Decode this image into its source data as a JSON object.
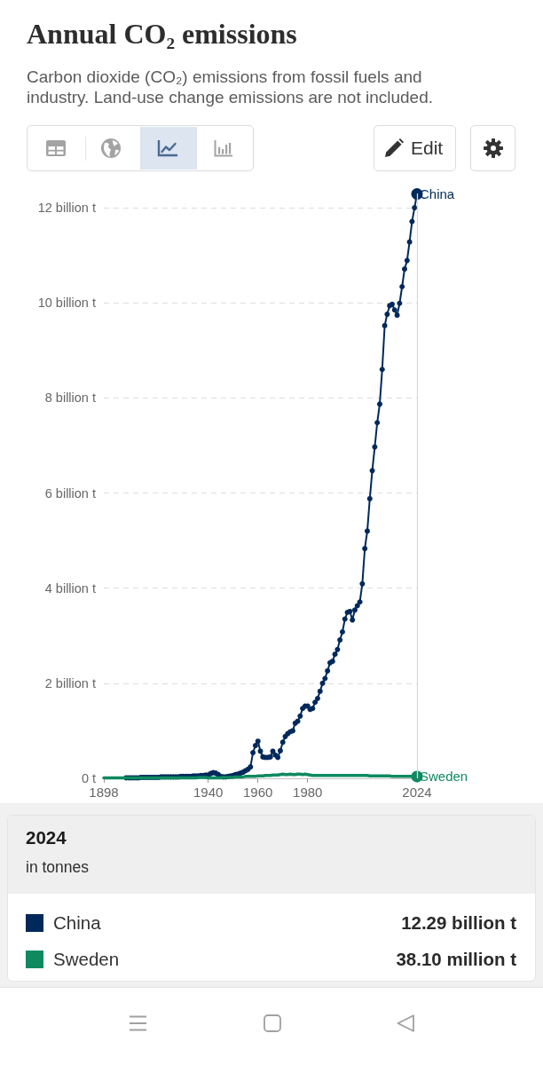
{
  "chart_data": {
    "type": "line",
    "title": "Annual CO₂ emissions",
    "subtitle": "Carbon dioxide (CO₂) emissions from fossil fuels and industry. Land-use change emissions are not included.",
    "annotations": [
      "Edit",
      "in tonnes",
      "12.29 billion t",
      "38.10 million t"
    ],
    "legend_title": "2024",
    "legend": "bottom",
    "grid": "y",
    "marker": "circle",
    "line_style": "solid",
    "xlim": [
      1898,
      2024
    ],
    "xticks": [
      1898,
      1940,
      1960,
      1980,
      2024
    ],
    "ylim": [
      0,
      12.3
    ],
    "yticks": [
      {
        "value": 0,
        "label": "0 t"
      },
      {
        "value": 2,
        "label": "2 billion t"
      },
      {
        "value": 4,
        "label": "4 billion t"
      },
      {
        "value": 6,
        "label": "6 billion t"
      },
      {
        "value": 8,
        "label": "8 billion t"
      },
      {
        "value": 10,
        "label": "10 billion t"
      },
      {
        "value": 12,
        "label": "12 billion t"
      }
    ],
    "ref_lines": [
      {
        "axis": "x",
        "value": 2024,
        "color": "#d9d9d9"
      }
    ],
    "x": [
      1898,
      1899,
      1900,
      1901,
      1902,
      1903,
      1904,
      1905,
      1906,
      1907,
      1908,
      1909,
      1910,
      1911,
      1912,
      1913,
      1914,
      1915,
      1916,
      1917,
      1918,
      1919,
      1920,
      1921,
      1922,
      1923,
      1924,
      1925,
      1926,
      1927,
      1928,
      1929,
      1930,
      1931,
      1932,
      1933,
      1934,
      1935,
      1936,
      1937,
      1938,
      1939,
      1940,
      1941,
      1942,
      1943,
      1944,
      1945,
      1946,
      1947,
      1948,
      1949,
      1950,
      1951,
      1952,
      1953,
      1954,
      1955,
      1956,
      1957,
      1958,
      1959,
      1960,
      1961,
      1962,
      1963,
      1964,
      1965,
      1966,
      1967,
      1968,
      1969,
      1970,
      1971,
      1972,
      1973,
      1974,
      1975,
      1976,
      1977,
      1978,
      1979,
      1980,
      1981,
      1982,
      1983,
      1984,
      1985,
      1986,
      1987,
      1988,
      1989,
      1990,
      1991,
      1992,
      1993,
      1994,
      1995,
      1996,
      1997,
      1998,
      1999,
      2000,
      2001,
      2002,
      2003,
      2004,
      2005,
      2006,
      2007,
      2008,
      2009,
      2010,
      2011,
      2012,
      2013,
      2014,
      2015,
      2016,
      2017,
      2018,
      2019,
      2020,
      2021,
      2022,
      2023,
      2024
    ],
    "series": [
      {
        "name": "China",
        "color": "#00295b",
        "values": [
          null,
          null,
          null,
          null,
          null,
          null,
          null,
          null,
          null,
          0.01,
          0.01,
          0.01,
          0.01,
          0.01,
          0.01,
          0.02,
          0.02,
          0.02,
          0.02,
          0.02,
          0.02,
          0.02,
          0.02,
          0.03,
          0.03,
          0.03,
          0.03,
          0.03,
          0.03,
          0.03,
          0.03,
          0.04,
          0.04,
          0.04,
          0.04,
          0.04,
          0.05,
          0.05,
          0.05,
          0.06,
          0.06,
          0.07,
          0.07,
          0.1,
          0.12,
          0.11,
          0.08,
          0.04,
          0.03,
          0.03,
          0.04,
          0.05,
          0.06,
          0.08,
          0.09,
          0.11,
          0.13,
          0.16,
          0.19,
          0.24,
          0.54,
          0.69,
          0.78,
          0.57,
          0.45,
          0.44,
          0.44,
          0.45,
          0.57,
          0.49,
          0.44,
          0.58,
          0.76,
          0.88,
          0.94,
          0.98,
          1.0,
          1.16,
          1.2,
          1.31,
          1.47,
          1.52,
          1.52,
          1.45,
          1.47,
          1.6,
          1.68,
          1.83,
          2.0,
          2.1,
          2.26,
          2.43,
          2.46,
          2.61,
          2.71,
          2.91,
          3.08,
          3.35,
          3.49,
          3.51,
          3.33,
          3.54,
          3.63,
          3.71,
          4.09,
          4.83,
          5.2,
          5.88,
          6.47,
          6.97,
          7.48,
          7.87,
          8.6,
          9.52,
          9.76,
          9.94,
          9.97,
          9.85,
          9.74,
          9.99,
          10.34,
          10.71,
          10.89,
          11.28,
          11.71,
          12.0,
          12.29
        ]
      },
      {
        "name": "Sweden",
        "color": "#0f8a5f",
        "marker": "none",
        "values": [
          0.01,
          0.01,
          0.01,
          0.01,
          0.01,
          0.01,
          0.01,
          0.01,
          0.01,
          0.01,
          0.01,
          0.01,
          0.01,
          0.01,
          0.01,
          0.01,
          0.01,
          0.01,
          0.01,
          0.01,
          0.01,
          0.01,
          0.01,
          0.01,
          0.01,
          0.01,
          0.01,
          0.01,
          0.01,
          0.01,
          0.01,
          0.01,
          0.01,
          0.01,
          0.01,
          0.01,
          0.01,
          0.01,
          0.02,
          0.02,
          0.02,
          0.02,
          0.01,
          0.01,
          0.01,
          0.01,
          0.01,
          0.01,
          0.02,
          0.02,
          0.02,
          0.02,
          0.02,
          0.03,
          0.03,
          0.03,
          0.03,
          0.04,
          0.04,
          0.04,
          0.04,
          0.04,
          0.05,
          0.05,
          0.05,
          0.06,
          0.06,
          0.06,
          0.07,
          0.07,
          0.07,
          0.08,
          0.09,
          0.08,
          0.08,
          0.09,
          0.08,
          0.08,
          0.09,
          0.09,
          0.08,
          0.09,
          0.08,
          0.07,
          0.06,
          0.06,
          0.06,
          0.06,
          0.06,
          0.06,
          0.06,
          0.06,
          0.06,
          0.06,
          0.06,
          0.06,
          0.06,
          0.06,
          0.06,
          0.06,
          0.06,
          0.06,
          0.06,
          0.06,
          0.06,
          0.06,
          0.06,
          0.05,
          0.05,
          0.05,
          0.05,
          0.05,
          0.05,
          0.05,
          0.05,
          0.05,
          0.04,
          0.04,
          0.04,
          0.04,
          0.04,
          0.04,
          0.04,
          0.04,
          0.04,
          0.04,
          0.0381
        ]
      }
    ]
  }
}
